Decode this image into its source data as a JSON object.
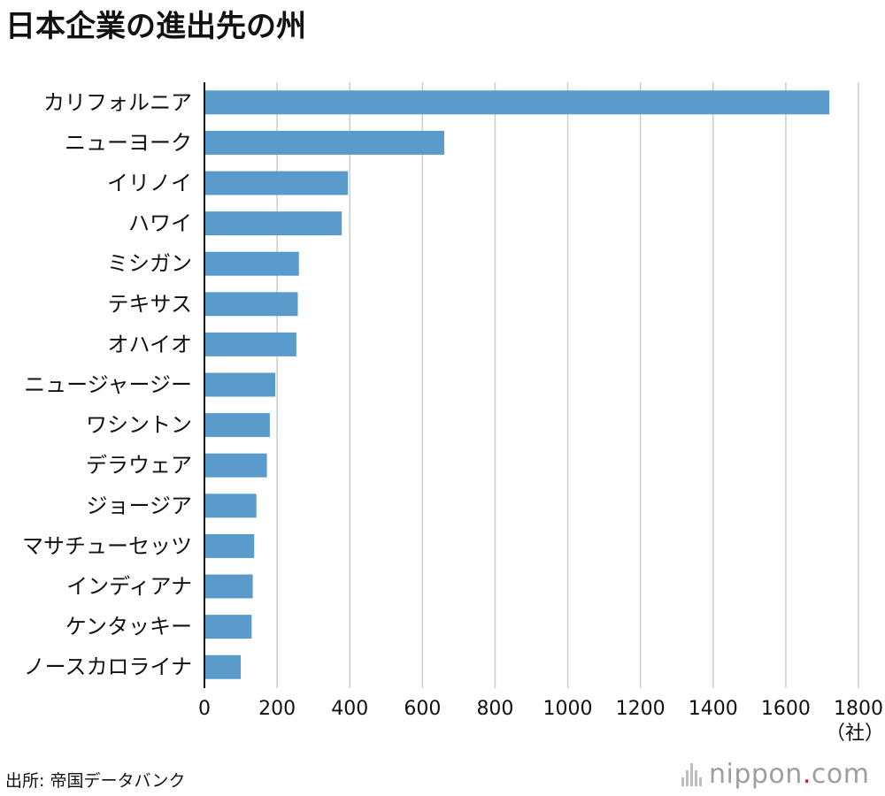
{
  "title": "日本企業の進出先の州",
  "source": "出所: 帝国データバンク",
  "brand": {
    "name": "nippon",
    "dot": ".",
    "tld": "com"
  },
  "colors": {
    "bar": "#5a9bcb",
    "grid": "#cccccc",
    "axis": "#111111"
  },
  "chart_data": {
    "type": "bar",
    "orientation": "horizontal",
    "categories": [
      "カリフォルニア",
      "ニューヨーク",
      "イリノイ",
      "ハワイ",
      "ミシガン",
      "テキサス",
      "オハイオ",
      "ニュージャージー",
      "ワシントン",
      "デラウェア",
      "ジョージア",
      "マサチューセッツ",
      "インディアナ",
      "ケンタッキー",
      "ノースカロライナ"
    ],
    "values": [
      1720,
      660,
      395,
      378,
      260,
      257,
      253,
      195,
      180,
      172,
      143,
      137,
      133,
      130,
      100
    ],
    "xlim": [
      0,
      1800
    ],
    "xticks": [
      0,
      200,
      400,
      600,
      800,
      1000,
      1200,
      1400,
      1600,
      1800
    ],
    "unit": "（社）",
    "grid": true,
    "legend": "none"
  }
}
